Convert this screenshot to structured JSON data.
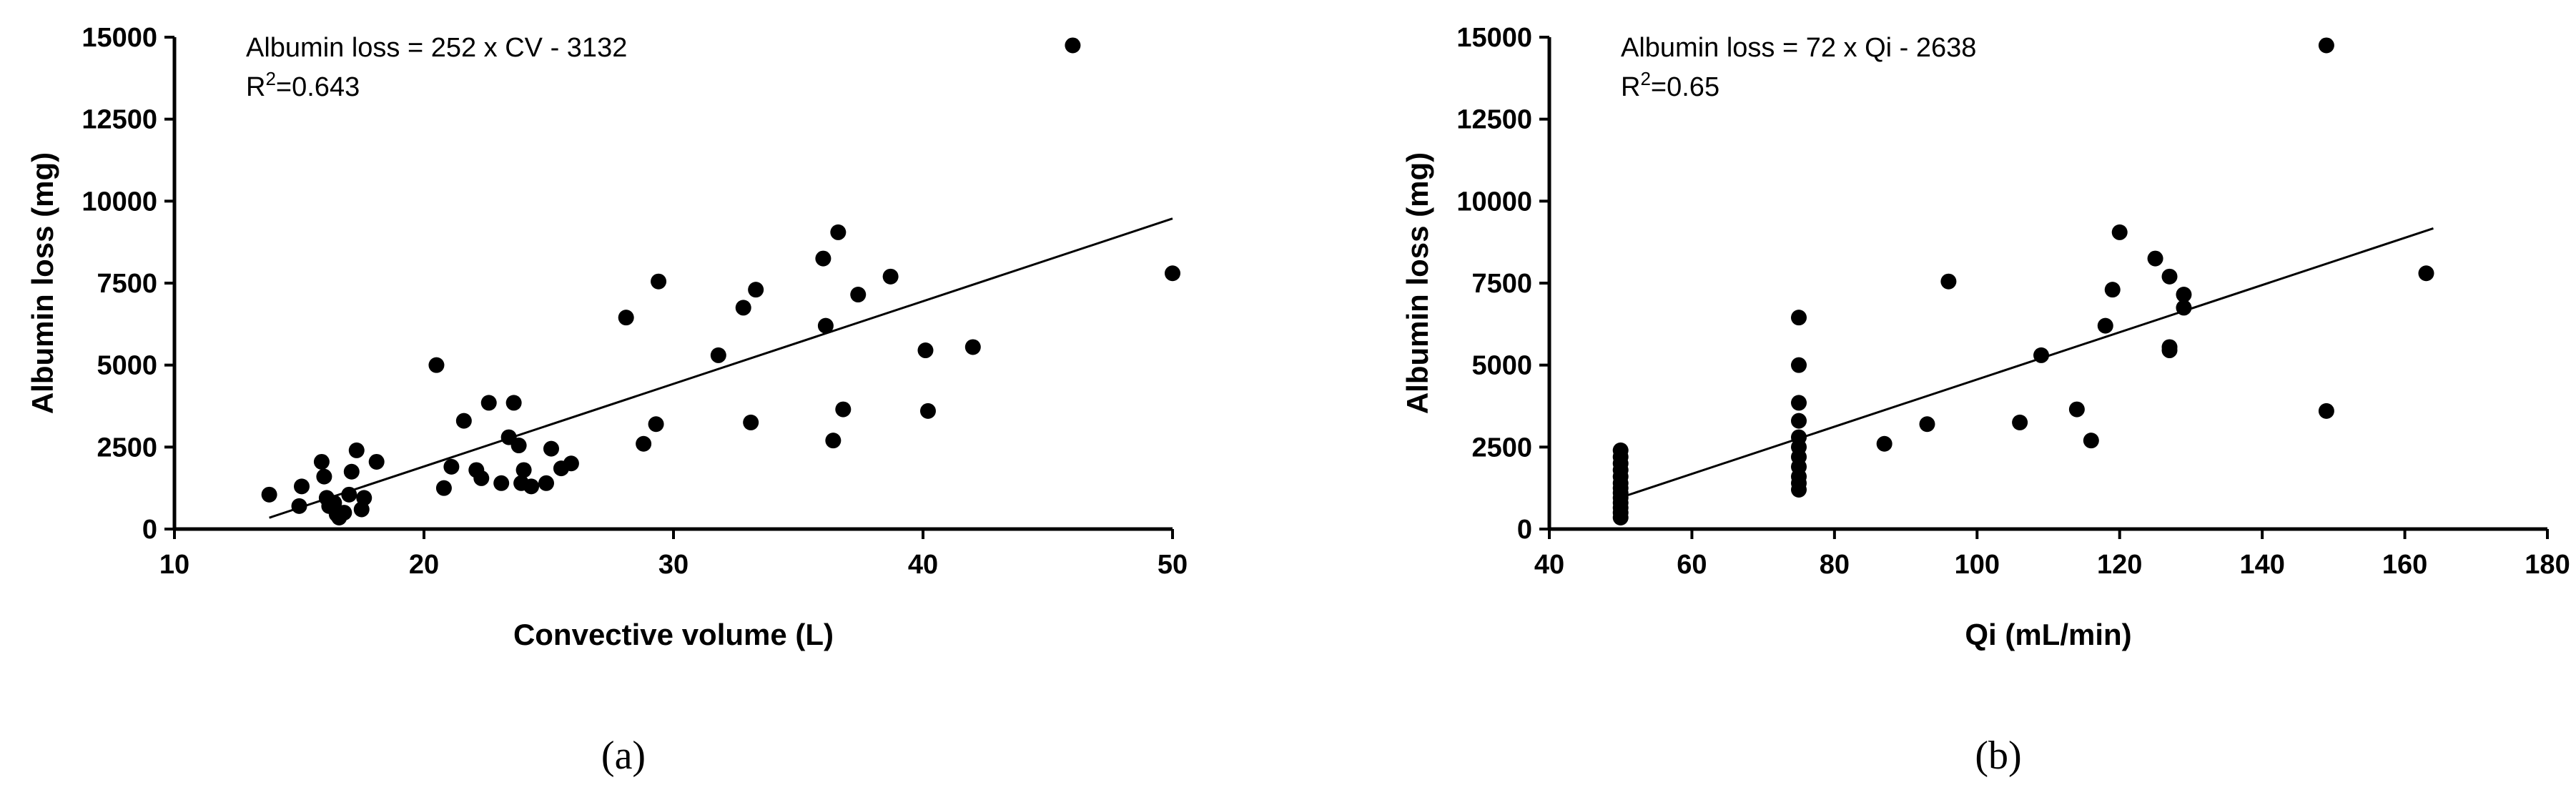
{
  "chart_data": [
    {
      "type": "scatter",
      "xlabel": "Convective volume (L)",
      "ylabel": "Albumin loss (mg)",
      "xlim": [
        10,
        50
      ],
      "ylim": [
        0,
        15000
      ],
      "xticks": [
        "10",
        "20",
        "30",
        "40",
        "50"
      ],
      "yticks": [
        "0",
        "2500",
        "5000",
        "7500",
        "10000",
        "12500",
        "15000"
      ],
      "annotation_line1": "Albumin loss = 252 x CV - 3132",
      "annotation_r2_prefix": "R",
      "annotation_r2_sup": "2",
      "annotation_r2_value": "=0.643",
      "panel_label": "(a)",
      "trendline": {
        "slope": 252,
        "intercept": -3132,
        "x_start": 13.8,
        "x_end": 50
      },
      "points": [
        [
          13.8,
          1050
        ],
        [
          15.0,
          700
        ],
        [
          15.1,
          1300
        ],
        [
          15.9,
          2050
        ],
        [
          16.0,
          1600
        ],
        [
          16.1,
          950
        ],
        [
          16.2,
          700
        ],
        [
          16.4,
          800
        ],
        [
          16.5,
          450
        ],
        [
          16.6,
          350
        ],
        [
          16.8,
          500
        ],
        [
          17.0,
          1050
        ],
        [
          17.1,
          1750
        ],
        [
          17.3,
          2400
        ],
        [
          17.5,
          600
        ],
        [
          17.6,
          950
        ],
        [
          18.1,
          2050
        ],
        [
          20.5,
          5000
        ],
        [
          20.8,
          1250
        ],
        [
          21.1,
          1900
        ],
        [
          21.6,
          3300
        ],
        [
          22.1,
          1800
        ],
        [
          22.3,
          1550
        ],
        [
          22.6,
          3850
        ],
        [
          23.1,
          1400
        ],
        [
          23.4,
          2800
        ],
        [
          23.6,
          3850
        ],
        [
          23.8,
          2550
        ],
        [
          23.9,
          1400
        ],
        [
          24.0,
          1800
        ],
        [
          24.3,
          1300
        ],
        [
          24.9,
          1400
        ],
        [
          25.1,
          2450
        ],
        [
          25.5,
          1850
        ],
        [
          25.9,
          2000
        ],
        [
          28.1,
          6450
        ],
        [
          28.8,
          2600
        ],
        [
          29.3,
          3200
        ],
        [
          29.4,
          7550
        ],
        [
          31.8,
          5300
        ],
        [
          32.8,
          6750
        ],
        [
          33.1,
          3250
        ],
        [
          33.3,
          7300
        ],
        [
          36.0,
          8250
        ],
        [
          36.1,
          6200
        ],
        [
          36.4,
          2700
        ],
        [
          36.6,
          9050
        ],
        [
          36.8,
          3650
        ],
        [
          37.4,
          7150
        ],
        [
          38.7,
          7700
        ],
        [
          40.1,
          5450
        ],
        [
          40.2,
          3600
        ],
        [
          42.0,
          5550
        ],
        [
          46.0,
          14750
        ],
        [
          50.0,
          7800
        ]
      ]
    },
    {
      "type": "scatter",
      "xlabel": "Qi (mL/min)",
      "ylabel": "Albumin loss (mg)",
      "xlim": [
        40,
        180
      ],
      "ylim": [
        0,
        15000
      ],
      "xticks": [
        "40",
        "60",
        "80",
        "100",
        "120",
        "140",
        "160",
        "180"
      ],
      "yticks": [
        "0",
        "2500",
        "5000",
        "7500",
        "10000",
        "12500",
        "15000"
      ],
      "annotation_line1": "Albumin loss = 72 x Qi - 2638",
      "annotation_r2_prefix": "R",
      "annotation_r2_sup": "2",
      "annotation_r2_value": "=0.65",
      "panel_label": "(b)",
      "trendline": {
        "slope": 72,
        "intercept": -2638,
        "x_start": 50,
        "x_end": 164
      },
      "points": [
        [
          50,
          350
        ],
        [
          50,
          500
        ],
        [
          50,
          650
        ],
        [
          50,
          800
        ],
        [
          50,
          950
        ],
        [
          50,
          1100
        ],
        [
          50,
          1250
        ],
        [
          50,
          1400
        ],
        [
          50,
          1600
        ],
        [
          50,
          1800
        ],
        [
          50,
          2000
        ],
        [
          50,
          2200
        ],
        [
          50,
          2400
        ],
        [
          75,
          1200
        ],
        [
          75,
          1400
        ],
        [
          75,
          1600
        ],
        [
          75,
          1900
        ],
        [
          75,
          2200
        ],
        [
          75,
          2500
        ],
        [
          75,
          2800
        ],
        [
          75,
          3300
        ],
        [
          75,
          3850
        ],
        [
          75,
          5000
        ],
        [
          75,
          6450
        ],
        [
          87,
          2600
        ],
        [
          93,
          3200
        ],
        [
          96,
          7550
        ],
        [
          106,
          3250
        ],
        [
          109,
          5300
        ],
        [
          114,
          3650
        ],
        [
          116,
          2700
        ],
        [
          118,
          6200
        ],
        [
          119,
          7300
        ],
        [
          120,
          9050
        ],
        [
          125,
          8250
        ],
        [
          127,
          7700
        ],
        [
          127,
          5550
        ],
        [
          127,
          5450
        ],
        [
          129,
          6750
        ],
        [
          129,
          7150
        ],
        [
          149,
          14750
        ],
        [
          149,
          3600
        ],
        [
          163,
          7800
        ]
      ]
    }
  ]
}
